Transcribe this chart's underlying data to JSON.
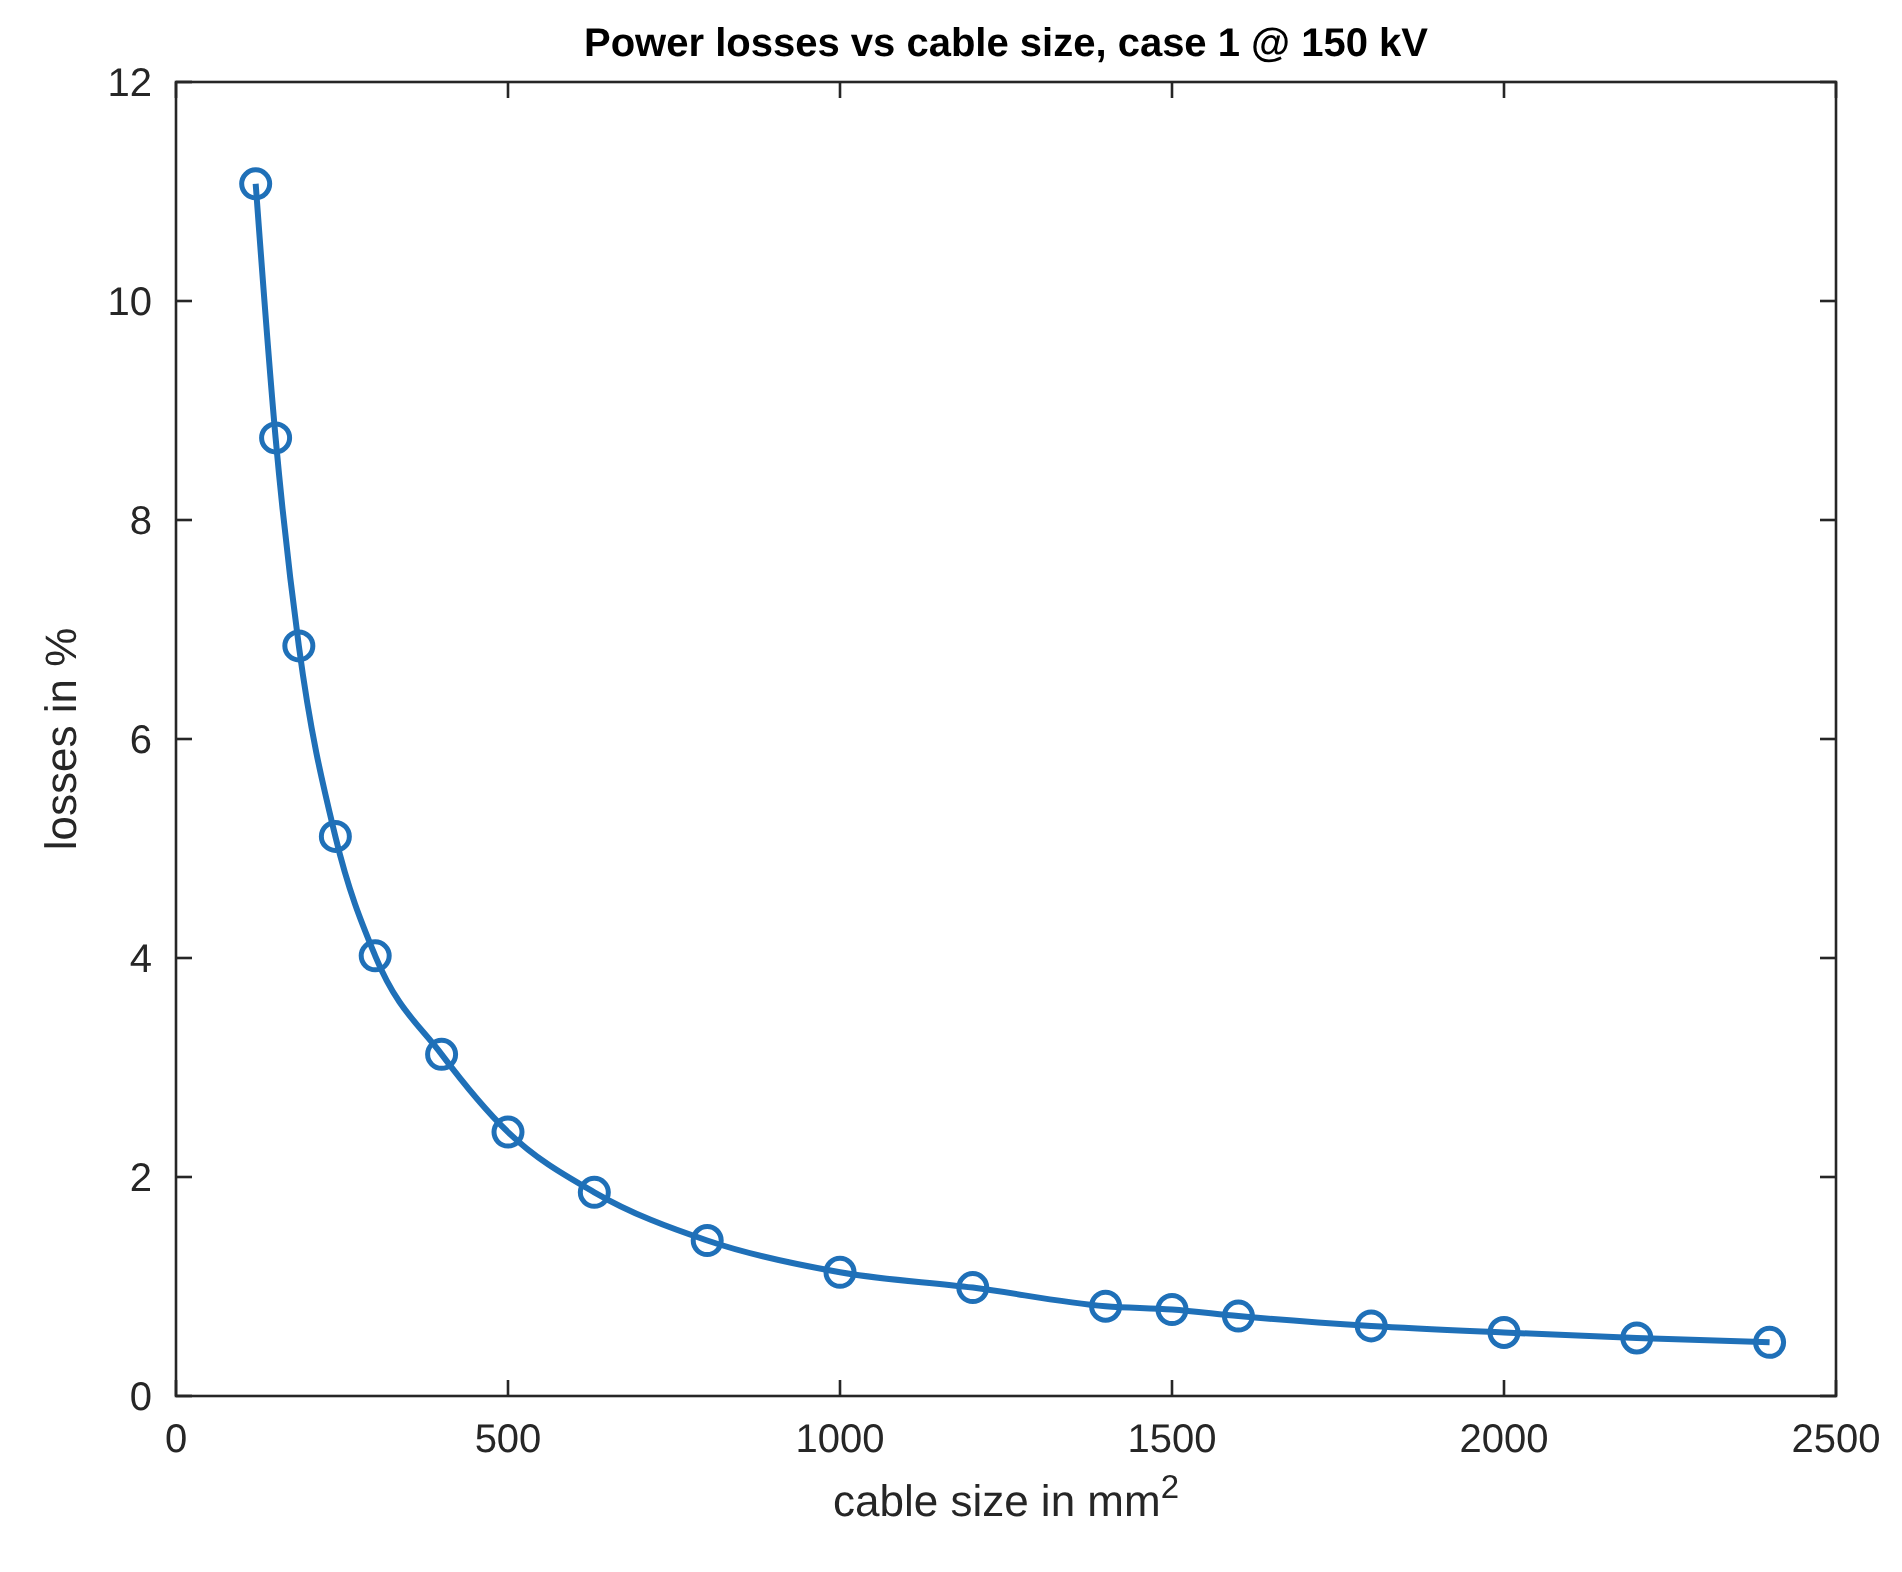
{
  "chart_data": {
    "type": "line",
    "title": "Power losses vs cable size, case 1 @ 150 kV",
    "xlabel": "cable size in mm$^{2}$",
    "ylabel": "losses in %",
    "x": [
      120,
      150,
      185,
      240,
      300,
      400,
      500,
      630,
      800,
      1000,
      1200,
      1400,
      1500,
      1600,
      1800,
      2000,
      2200,
      2400
    ],
    "series": [
      {
        "color": "#1f70b8",
        "values": [
          11.07,
          8.75,
          6.85,
          5.11,
          4.02,
          3.12,
          2.41,
          1.86,
          1.42,
          1.13,
          0.99,
          0.82,
          0.79,
          0.73,
          0.64,
          0.58,
          0.53,
          0.49
        ]
      }
    ],
    "xlim": [
      0,
      2500
    ],
    "xticks": [
      0,
      500,
      1000,
      1500,
      2000,
      2500
    ],
    "ylim": [
      0,
      12
    ],
    "yticks": [
      0,
      2,
      4,
      6,
      8,
      10,
      12
    ],
    "grid": false,
    "marker": "circle",
    "line_style": "solid"
  }
}
